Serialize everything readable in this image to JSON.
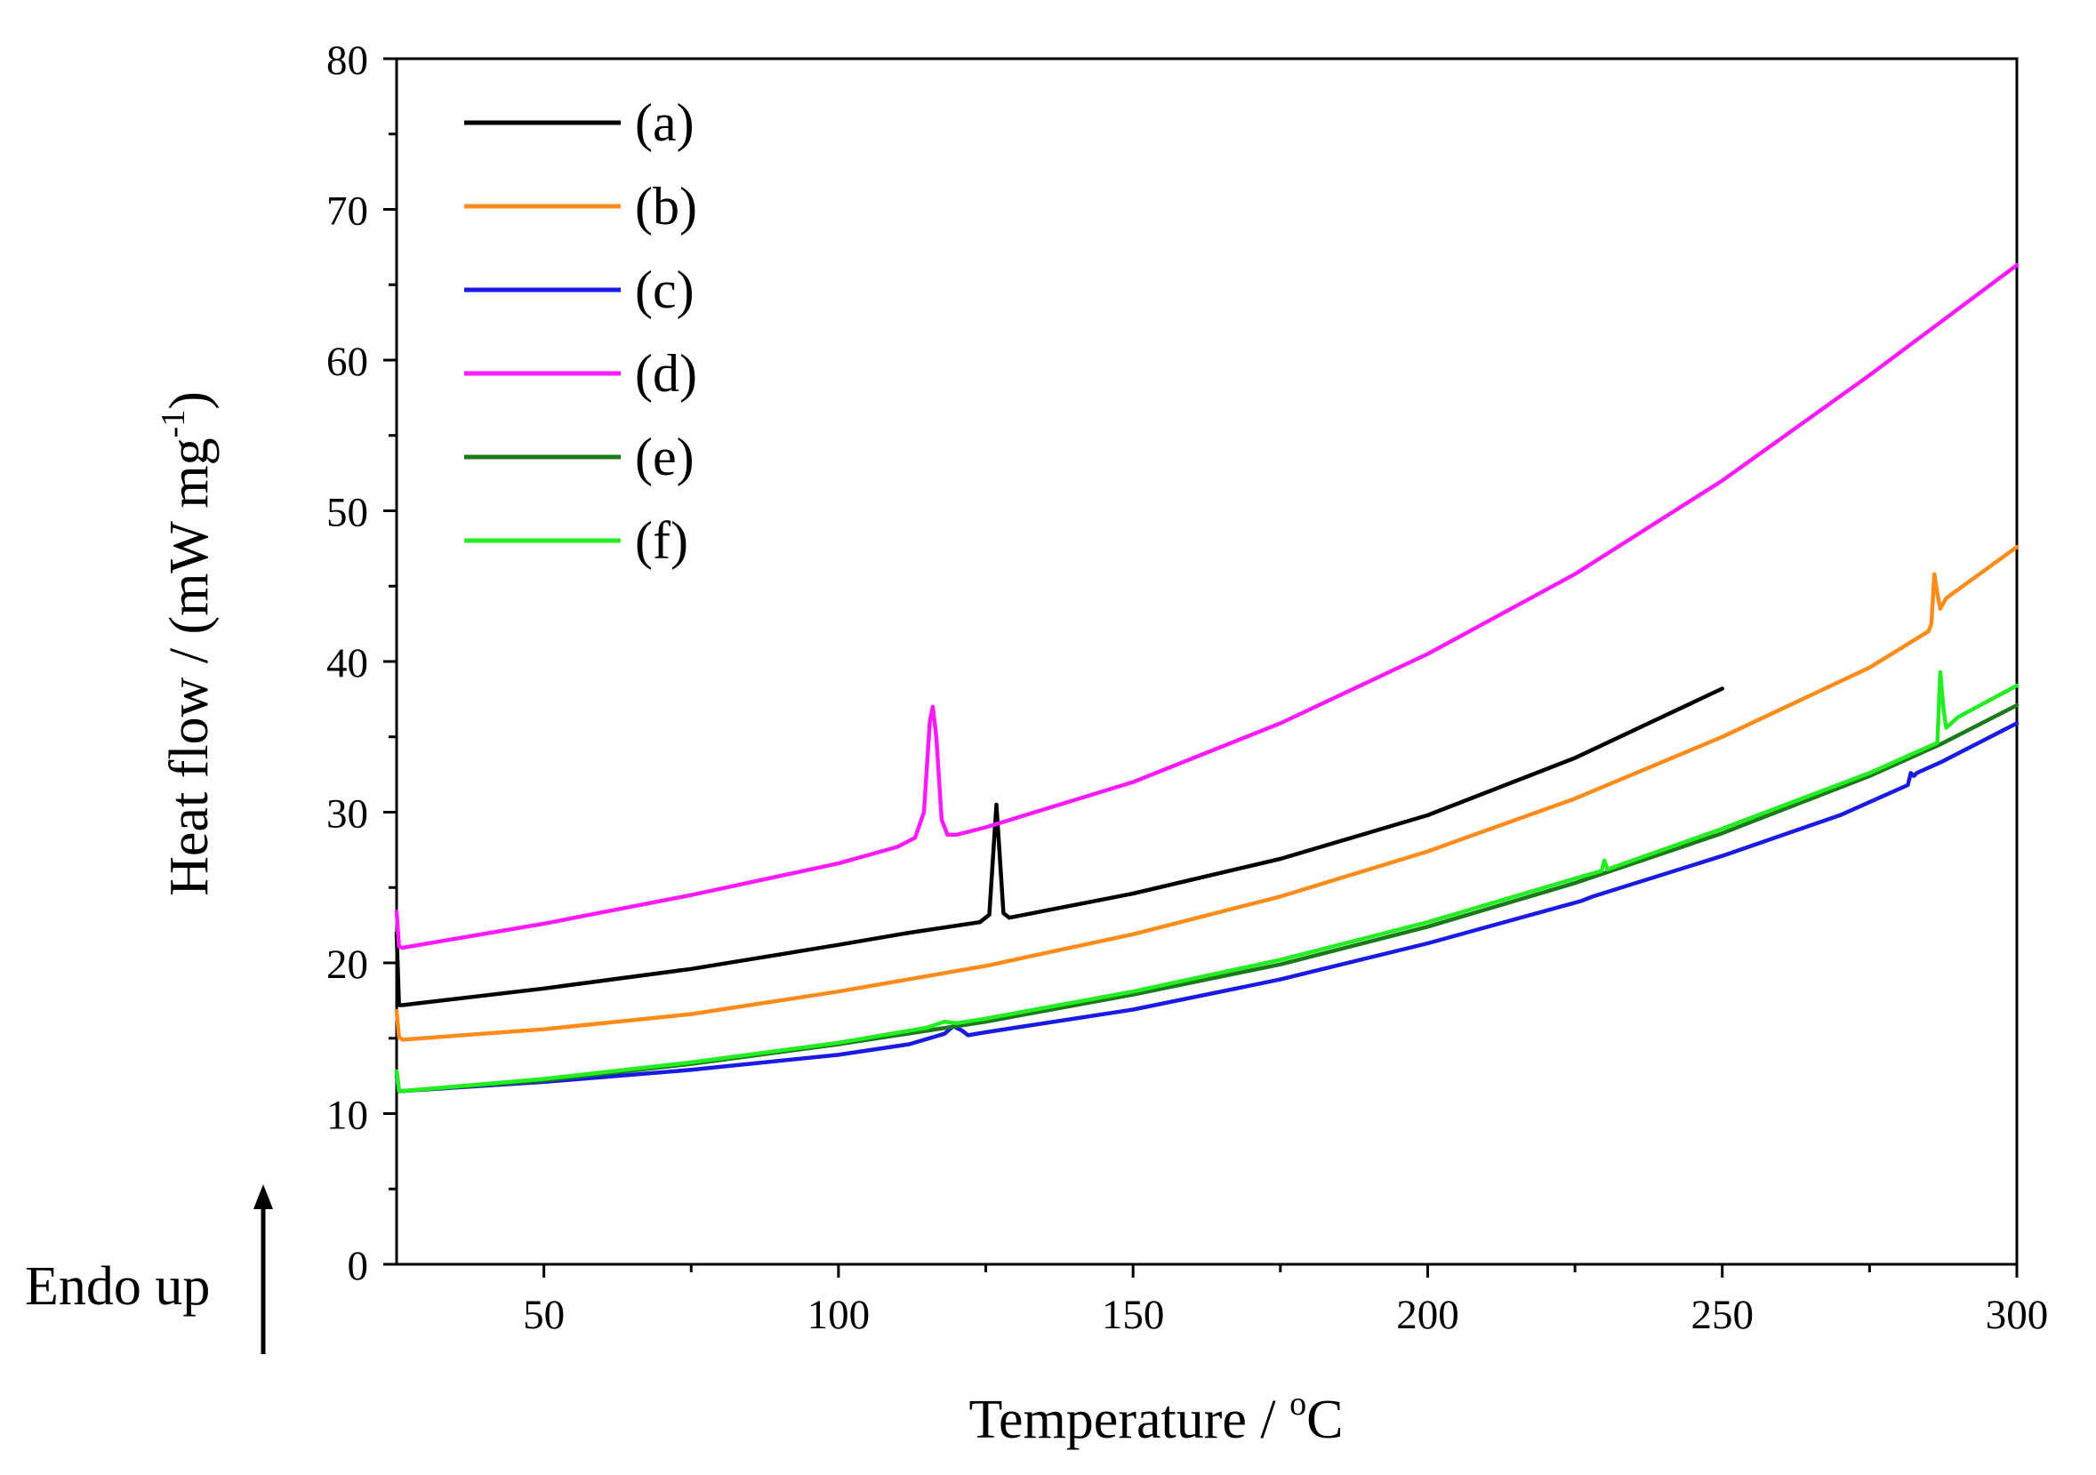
{
  "chart_data": {
    "type": "line",
    "title": "",
    "xlabel": "Temperature / ",
    "xlabel_sup": "o",
    "xlabel_unit": "C",
    "ylabel": "Heat flow / (mW mg",
    "ylabel_sup": "-1",
    "ylabel_end": ")",
    "xlim": [
      25,
      300
    ],
    "ylim": [
      0,
      80
    ],
    "xticks": [
      50,
      100,
      150,
      200,
      250,
      300
    ],
    "yticks": [
      0,
      10,
      20,
      30,
      40,
      50,
      60,
      70,
      80
    ],
    "x_minor_step": 25,
    "y_minor_step": 5,
    "legend_position": "top-left",
    "annotation": {
      "text": "Endo up",
      "direction": "up"
    },
    "series": [
      {
        "name": "(a)",
        "color": "#000000",
        "points": [
          [
            25,
            22
          ],
          [
            25.4,
            17.2
          ],
          [
            26,
            17.2
          ],
          [
            50,
            18.3
          ],
          [
            75,
            19.6
          ],
          [
            100,
            21.2
          ],
          [
            112,
            22.0
          ],
          [
            124,
            22.7
          ],
          [
            125.6,
            23.2
          ],
          [
            126.3,
            27.5
          ],
          [
            126.8,
            30.5
          ],
          [
            127.3,
            27.5
          ],
          [
            128,
            23.3
          ],
          [
            129,
            23.0
          ],
          [
            150,
            24.6
          ],
          [
            175,
            26.9
          ],
          [
            200,
            29.8
          ],
          [
            225,
            33.6
          ],
          [
            250,
            38.2
          ]
        ]
      },
      {
        "name": "(b)",
        "color": "#ff8c1a",
        "points": [
          [
            25,
            16.8
          ],
          [
            25.4,
            15.1
          ],
          [
            26,
            14.9
          ],
          [
            50,
            15.6
          ],
          [
            75,
            16.6
          ],
          [
            100,
            18.1
          ],
          [
            125,
            19.8
          ],
          [
            150,
            21.9
          ],
          [
            175,
            24.4
          ],
          [
            200,
            27.4
          ],
          [
            225,
            30.9
          ],
          [
            250,
            35.0
          ],
          [
            275,
            39.6
          ],
          [
            285,
            42.0
          ],
          [
            285.5,
            42.5
          ],
          [
            286,
            45.8
          ],
          [
            286.5,
            44.5
          ],
          [
            287,
            43.5
          ],
          [
            288,
            44.2
          ],
          [
            300,
            47.6
          ]
        ]
      },
      {
        "name": "(c)",
        "color": "#1a1ae6",
        "points": [
          [
            25,
            12.5
          ],
          [
            25.4,
            11.5
          ],
          [
            26,
            11.5
          ],
          [
            50,
            12.1
          ],
          [
            75,
            12.9
          ],
          [
            100,
            13.9
          ],
          [
            112,
            14.6
          ],
          [
            118,
            15.3
          ],
          [
            119.5,
            15.8
          ],
          [
            121,
            15.5
          ],
          [
            122,
            15.2
          ],
          [
            125,
            15.4
          ],
          [
            150,
            16.9
          ],
          [
            175,
            18.9
          ],
          [
            200,
            21.3
          ],
          [
            226,
            24.1
          ],
          [
            228,
            24.4
          ],
          [
            250,
            27.1
          ],
          [
            270,
            29.8
          ],
          [
            281.5,
            31.8
          ],
          [
            282,
            32.6
          ],
          [
            282.5,
            32.4
          ],
          [
            283,
            32.6
          ],
          [
            287,
            33.3
          ],
          [
            300,
            35.9
          ]
        ]
      },
      {
        "name": "(d)",
        "color": "#ff1aff",
        "points": [
          [
            25,
            23.4
          ],
          [
            25.4,
            21.1
          ],
          [
            26,
            21.0
          ],
          [
            50,
            22.6
          ],
          [
            75,
            24.5
          ],
          [
            100,
            26.6
          ],
          [
            110,
            27.7
          ],
          [
            113,
            28.3
          ],
          [
            114.5,
            30.0
          ],
          [
            115.5,
            36.0
          ],
          [
            116,
            37.0
          ],
          [
            116.6,
            35.0
          ],
          [
            117.5,
            29.5
          ],
          [
            118.5,
            28.5
          ],
          [
            120,
            28.5
          ],
          [
            125,
            29.0
          ],
          [
            150,
            32.0
          ],
          [
            175,
            35.9
          ],
          [
            200,
            40.5
          ],
          [
            225,
            45.8
          ],
          [
            250,
            52.0
          ],
          [
            275,
            59.0
          ],
          [
            300,
            66.3
          ]
        ]
      },
      {
        "name": "(e)",
        "color": "#1a7a1a",
        "points": [
          [
            25,
            12.8
          ],
          [
            25.4,
            11.5
          ],
          [
            26,
            11.5
          ],
          [
            50,
            12.2
          ],
          [
            75,
            13.3
          ],
          [
            100,
            14.6
          ],
          [
            125,
            16.1
          ],
          [
            150,
            17.9
          ],
          [
            175,
            19.9
          ],
          [
            200,
            22.4
          ],
          [
            225,
            25.3
          ],
          [
            250,
            28.6
          ],
          [
            275,
            32.4
          ],
          [
            287,
            34.5
          ],
          [
            300,
            37.1
          ]
        ]
      },
      {
        "name": "(f)",
        "color": "#22ee22",
        "points": [
          [
            25,
            12.8
          ],
          [
            25.4,
            11.5
          ],
          [
            26,
            11.5
          ],
          [
            50,
            12.3
          ],
          [
            75,
            13.4
          ],
          [
            100,
            14.7
          ],
          [
            115,
            15.7
          ],
          [
            118,
            16.1
          ],
          [
            120,
            16.0
          ],
          [
            125,
            16.3
          ],
          [
            150,
            18.1
          ],
          [
            175,
            20.2
          ],
          [
            200,
            22.7
          ],
          [
            225,
            25.6
          ],
          [
            229.5,
            26.1
          ],
          [
            230,
            26.8
          ],
          [
            230.5,
            26.2
          ],
          [
            250,
            28.9
          ],
          [
            275,
            32.6
          ],
          [
            286.5,
            34.6
          ],
          [
            287,
            39.3
          ],
          [
            287.5,
            37.0
          ],
          [
            288,
            35.6
          ],
          [
            290,
            36.3
          ],
          [
            300,
            38.4
          ]
        ]
      }
    ]
  }
}
